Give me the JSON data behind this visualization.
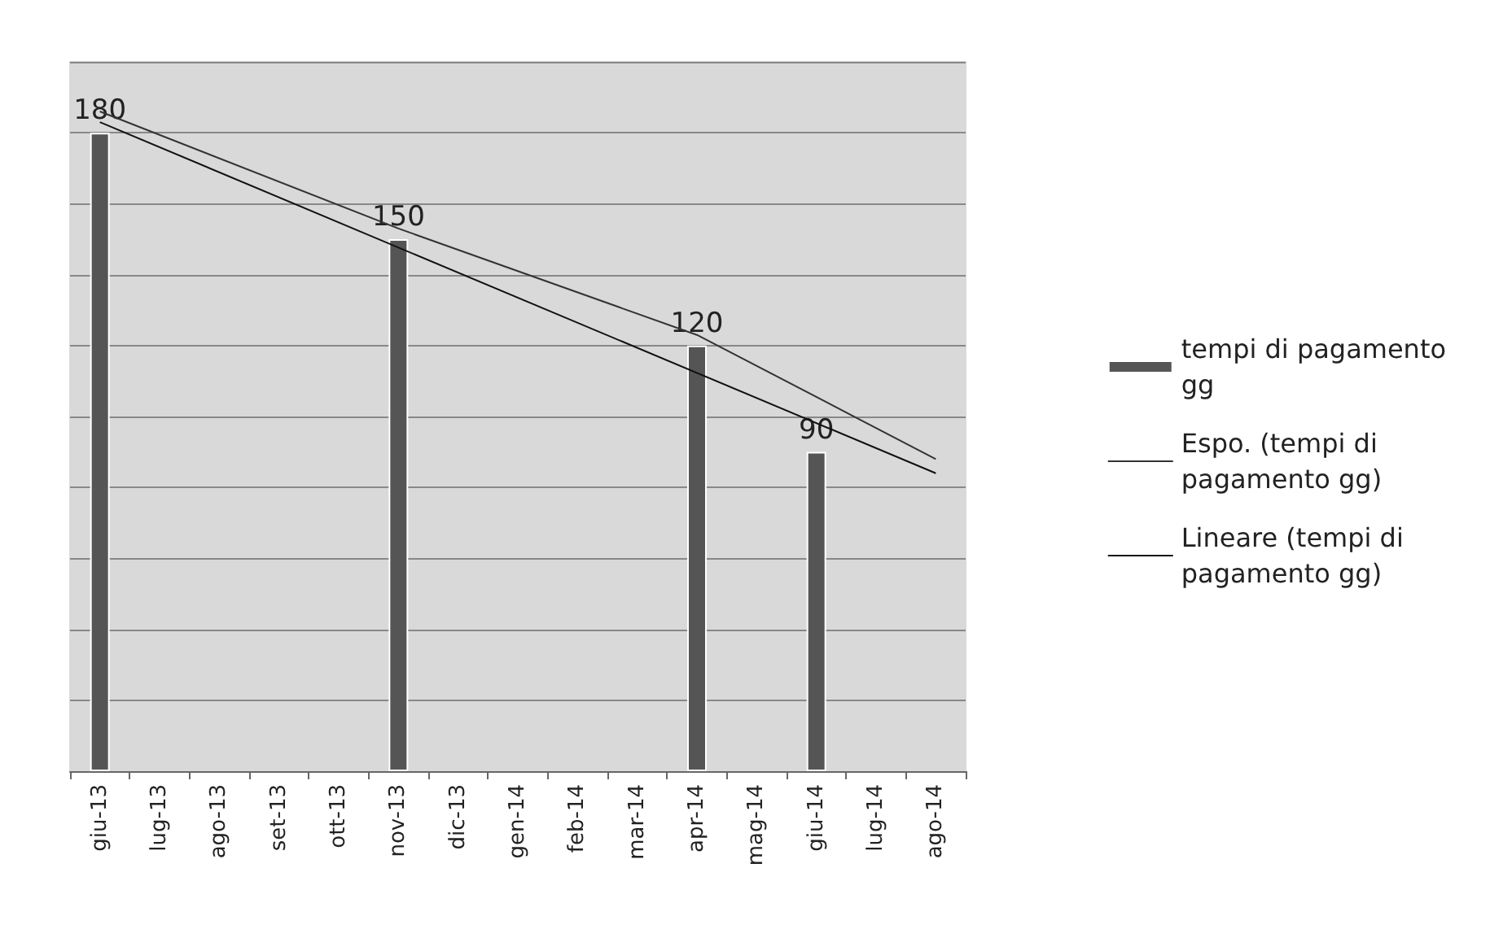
{
  "chart_data": {
    "type": "bar",
    "categories": [
      "giu-13",
      "lug-13",
      "ago-13",
      "set-13",
      "ott-13",
      "nov-13",
      "dic-13",
      "gen-14",
      "feb-14",
      "mar-14",
      "apr-14",
      "mag-14",
      "giu-14",
      "lug-14",
      "ago-14"
    ],
    "series": [
      {
        "name": "tempi di pagamento gg",
        "color": "#555555",
        "values": [
          180,
          null,
          null,
          null,
          null,
          150,
          null,
          null,
          null,
          null,
          120,
          null,
          90,
          null,
          null
        ],
        "value_labels": [
          "180",
          null,
          null,
          null,
          null,
          "150",
          null,
          null,
          null,
          null,
          "120",
          null,
          "90",
          null,
          null
        ]
      },
      {
        "name": "Espo. (tempi di pagamento gg)",
        "type": "line",
        "color": "#333333",
        "x": [
          "giu-13",
          "nov-13",
          "apr-14",
          "ago-14"
        ],
        "values": [
          186,
          153,
          123,
          88
        ]
      },
      {
        "name": "Lineare (tempi di pagamento gg)",
        "type": "line",
        "color": "#111111",
        "x": [
          "giu-13",
          "ago-14"
        ],
        "values": [
          183,
          84
        ]
      }
    ],
    "ylim": [
      0,
      200
    ],
    "yticks": [
      {
        "value": 0,
        "label": null
      },
      {
        "value": 20,
        "label": null
      },
      {
        "value": 40,
        "label": null
      },
      {
        "value": 60,
        "label": null
      },
      {
        "value": 80,
        "label": null
      },
      {
        "value": 100,
        "label": null
      },
      {
        "value": 120,
        "label": null
      },
      {
        "value": 140,
        "label": null
      },
      {
        "value": 160,
        "label": null
      },
      {
        "value": 180,
        "label": null
      },
      {
        "value": 200,
        "label": null
      }
    ],
    "grid": "y",
    "legend": "right",
    "tick_labels": "x",
    "line_style": "solid",
    "marker": "none"
  }
}
